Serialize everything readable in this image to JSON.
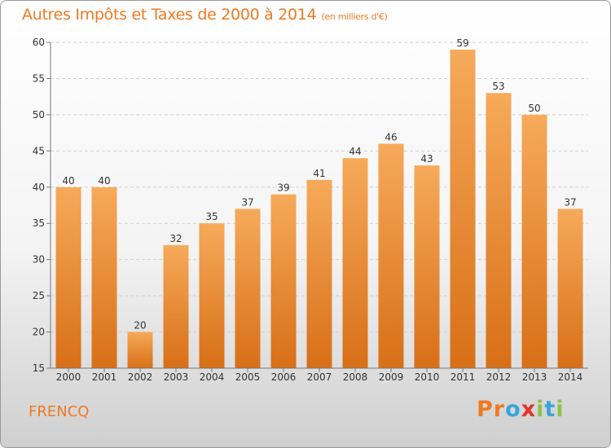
{
  "header": {
    "title": "Autres Impôts et Taxes de 2000 à 2014",
    "unit": "(en milliers d'€)"
  },
  "footer": {
    "commune": "FRENCQ",
    "logo": {
      "text": "Proxiti",
      "letters": [
        "P",
        "r",
        "o",
        "x",
        "i",
        "t",
        "i"
      ]
    }
  },
  "colors": {
    "accent": "#ee7a22",
    "bar_top": "#f6aa5a",
    "bar_bottom": "#d86f17",
    "logo": [
      "#ee7a22",
      "#ee7a22",
      "#3aa3dc",
      "#e5332a",
      "#8bc34a",
      "#3aa3dc",
      "#8bc34a"
    ]
  },
  "chart_data": {
    "type": "bar",
    "title": "Autres Impôts et Taxes de 2000 à 2014",
    "subtitle": "(en milliers d'€)",
    "categories": [
      "2000",
      "2001",
      "2002",
      "2003",
      "2004",
      "2005",
      "2006",
      "2007",
      "2008",
      "2009",
      "2010",
      "2011",
      "2012",
      "2013",
      "2014"
    ],
    "values": [
      40,
      40,
      20,
      32,
      35,
      37,
      39,
      41,
      44,
      46,
      43,
      59,
      53,
      50,
      37
    ],
    "ylim": [
      15,
      60
    ],
    "yticks": [
      15,
      20,
      25,
      30,
      35,
      40,
      45,
      50,
      55,
      60
    ],
    "grid": true,
    "data_labels": true
  }
}
